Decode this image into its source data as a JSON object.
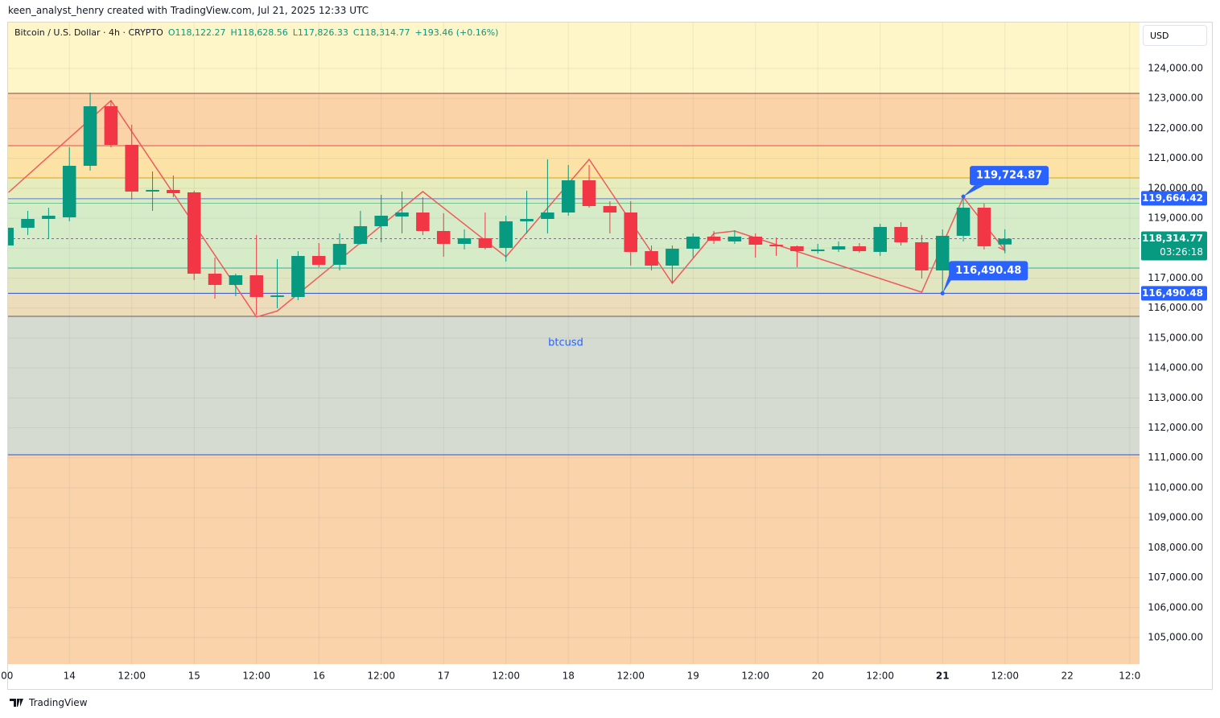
{
  "header": {
    "credit": "keen_analyst_henry created with TradingView.com, Jul 21, 2025 12:33 UTC",
    "symbol": "Bitcoin / U.S. Dollar · 4h · CRYPTO",
    "ohlc": [
      "O118,122.27",
      "H118,628.56",
      "L117,826.33",
      "C118,314.77",
      "+193.46 (+0.16%)"
    ],
    "currency": "USD"
  },
  "footer": {
    "brand": "TradingView"
  },
  "chart_data": {
    "type": "candlestick",
    "watermark": "btcusd",
    "up_color": "#089981",
    "down_color": "#f23645",
    "grid": true,
    "x": [
      12,
      16,
      20,
      24,
      28,
      32,
      36,
      40,
      44,
      48,
      52,
      56,
      60,
      64,
      68,
      72,
      76,
      80,
      84,
      88,
      92,
      96,
      100,
      104,
      108,
      112,
      116,
      120,
      124,
      128,
      132,
      136,
      140,
      144,
      148,
      152,
      156,
      160,
      164,
      168,
      172,
      176,
      180,
      184,
      188,
      192,
      196,
      200,
      204
    ],
    "open": [
      118089,
      118680,
      118975,
      119029,
      120749,
      122737,
      121447,
      119889,
      119943,
      119862,
      117148,
      116772,
      117094,
      116369,
      116369,
      117739,
      117444,
      118142,
      118733,
      119056,
      119190,
      118572,
      118142,
      118331,
      118008,
      118895,
      118975,
      119190,
      120265,
      119405,
      119190,
      117900,
      117417,
      117981,
      118384,
      118223,
      118384,
      118115,
      118062,
      117900,
      117954,
      118062,
      117874,
      118707,
      118196,
      117256,
      118411,
      119351,
      118122.27
    ],
    "high": [
      118707,
      119244,
      119351,
      121367,
      123194,
      122925,
      122119,
      120561,
      120426,
      119916,
      117685,
      117148,
      118438,
      117632,
      117900,
      118169,
      118492,
      119244,
      119781,
      119889,
      119701,
      119163,
      118626,
      119190,
      119083,
      119916,
      120964,
      120776,
      120776,
      119567,
      119567,
      118089,
      118089,
      118492,
      118572,
      118599,
      118492,
      118357,
      118089,
      118142,
      118223,
      118169,
      118814,
      118868,
      118438,
      118626,
      119724.87,
      119486,
      118628.56
    ],
    "low": [
      118062,
      118438,
      118303,
      118895,
      120588,
      121367,
      119620,
      119244,
      119701,
      116933,
      116315,
      116396,
      115778,
      115993,
      116261,
      117363,
      117256,
      118115,
      118196,
      118492,
      118438,
      117712,
      117954,
      117954,
      117551,
      118492,
      118492,
      119083,
      119351,
      118492,
      117417,
      117256,
      116826,
      117685,
      118142,
      118142,
      117685,
      117739,
      117363,
      117820,
      117874,
      117847,
      117739,
      118089,
      116987,
      116490.48,
      118223,
      117954,
      117826.33
    ],
    "close": [
      118680,
      118975,
      119083,
      120749,
      122737,
      121447,
      119889,
      119943,
      119835,
      117148,
      116772,
      117094,
      116369,
      116423,
      117739,
      117444,
      118142,
      118733,
      119083,
      119190,
      118572,
      118142,
      118331,
      118008,
      118895,
      118975,
      119190,
      120265,
      119405,
      119190,
      117874,
      117417,
      117981,
      118384,
      118250,
      118384,
      118115,
      118062,
      117900,
      117954,
      118062,
      117900,
      118707,
      118196,
      117256,
      118411,
      119351,
      118062,
      118314.77
    ],
    "ylim": [
      104113,
      125532
    ],
    "yticks": [
      {
        "value": 124000,
        "label": "124,000.00"
      },
      {
        "value": 123000,
        "label": "123,000.00"
      },
      {
        "value": 122000,
        "label": "122,000.00"
      },
      {
        "value": 121000,
        "label": "121,000.00"
      },
      {
        "value": 120000,
        "label": "120,000.00"
      },
      {
        "value": 119000,
        "label": "119,000.00"
      },
      {
        "value": 118000,
        "label": "118,000.00"
      },
      {
        "value": 117000,
        "label": "117,000.00"
      },
      {
        "value": 116000,
        "label": "116,000.00"
      },
      {
        "value": 115000,
        "label": "115,000.00"
      },
      {
        "value": 114000,
        "label": "114,000.00"
      },
      {
        "value": 113000,
        "label": "113,000.00"
      },
      {
        "value": 112000,
        "label": "112,000.00"
      },
      {
        "value": 111000,
        "label": "111,000.00"
      },
      {
        "value": 110000,
        "label": "110,000.00"
      },
      {
        "value": 109000,
        "label": "109,000.00"
      },
      {
        "value": 108000,
        "label": "108,000.00"
      },
      {
        "value": 107000,
        "label": "107,000.00"
      },
      {
        "value": 106000,
        "label": "106,000.00"
      },
      {
        "value": 105000,
        "label": "105,000.00"
      }
    ],
    "xlim": [
      12.2,
      229.9
    ],
    "xticks": [
      {
        "value": 12,
        "label": "00"
      },
      {
        "value": 24,
        "label": "14"
      },
      {
        "value": 36,
        "label": "12:00"
      },
      {
        "value": 48,
        "label": "15"
      },
      {
        "value": 60,
        "label": "12:00"
      },
      {
        "value": 72,
        "label": "16"
      },
      {
        "value": 84,
        "label": "12:00"
      },
      {
        "value": 96,
        "label": "17"
      },
      {
        "value": 108,
        "label": "12:00"
      },
      {
        "value": 120,
        "label": "18"
      },
      {
        "value": 132,
        "label": "12:00"
      },
      {
        "value": 144,
        "label": "19"
      },
      {
        "value": 156,
        "label": "12:00"
      },
      {
        "value": 168,
        "label": "20"
      },
      {
        "value": 180,
        "label": "12:00"
      },
      {
        "value": 192,
        "label": "21"
      },
      {
        "value": 204,
        "label": "12:00"
      },
      {
        "value": 216,
        "label": "22"
      },
      {
        "value": 228,
        "label": "12:0"
      }
    ],
    "zones": [
      [
        123167,
        125532,
        "#fef6c8"
      ],
      [
        121420,
        123167,
        "#fbd3a9"
      ],
      [
        120346,
        121420,
        "#fde2a6"
      ],
      [
        119650,
        120346,
        "#e6ecbb"
      ],
      [
        117336,
        119650,
        "#d6ecc9"
      ],
      [
        116490,
        117336,
        "#e1e6c0"
      ],
      [
        115724,
        116490,
        "#ecdcb9"
      ],
      [
        111102,
        115724,
        "#d5dbd0"
      ],
      [
        104113,
        111102,
        "#fad3ab"
      ]
    ],
    "levels": [
      [
        123167,
        "#8a4a3a"
      ],
      [
        121420,
        "#e05050"
      ],
      [
        120346,
        "#d9a020"
      ],
      [
        119650,
        "#5b7bd5"
      ],
      [
        119500,
        "#7cc08a"
      ],
      [
        117336,
        "#30b0a0"
      ],
      [
        116490.48,
        "#3050d0"
      ],
      [
        115724,
        "#606060"
      ],
      [
        111102,
        "#3050d0"
      ]
    ],
    "zigzag": {
      "color": "#ef5a5a",
      "x": [
        12.3,
        32,
        60,
        64,
        92,
        108,
        124,
        140,
        148,
        152,
        188,
        196,
        204
      ],
      "y": [
        119862,
        122925,
        115700,
        115900,
        119889,
        117712,
        120964,
        116826,
        118492,
        118572,
        116530,
        119701,
        117926
      ]
    },
    "callouts": [
      {
        "x": 196,
        "value": 119724.87,
        "label": "119,724.87",
        "place": "above"
      },
      {
        "x": 192,
        "value": 116490.48,
        "label": "116,490.48",
        "place": "below"
      }
    ],
    "price_tags": [
      {
        "value": 119664.42,
        "label": "119,664.42",
        "color": "#2962ff"
      },
      {
        "value": 116490.48,
        "label": "116,490.48",
        "color": "#2962ff"
      },
      {
        "value": 118314.77,
        "label": "118,314.77",
        "color": "#089981",
        "countdown": "03:26:18"
      }
    ]
  }
}
